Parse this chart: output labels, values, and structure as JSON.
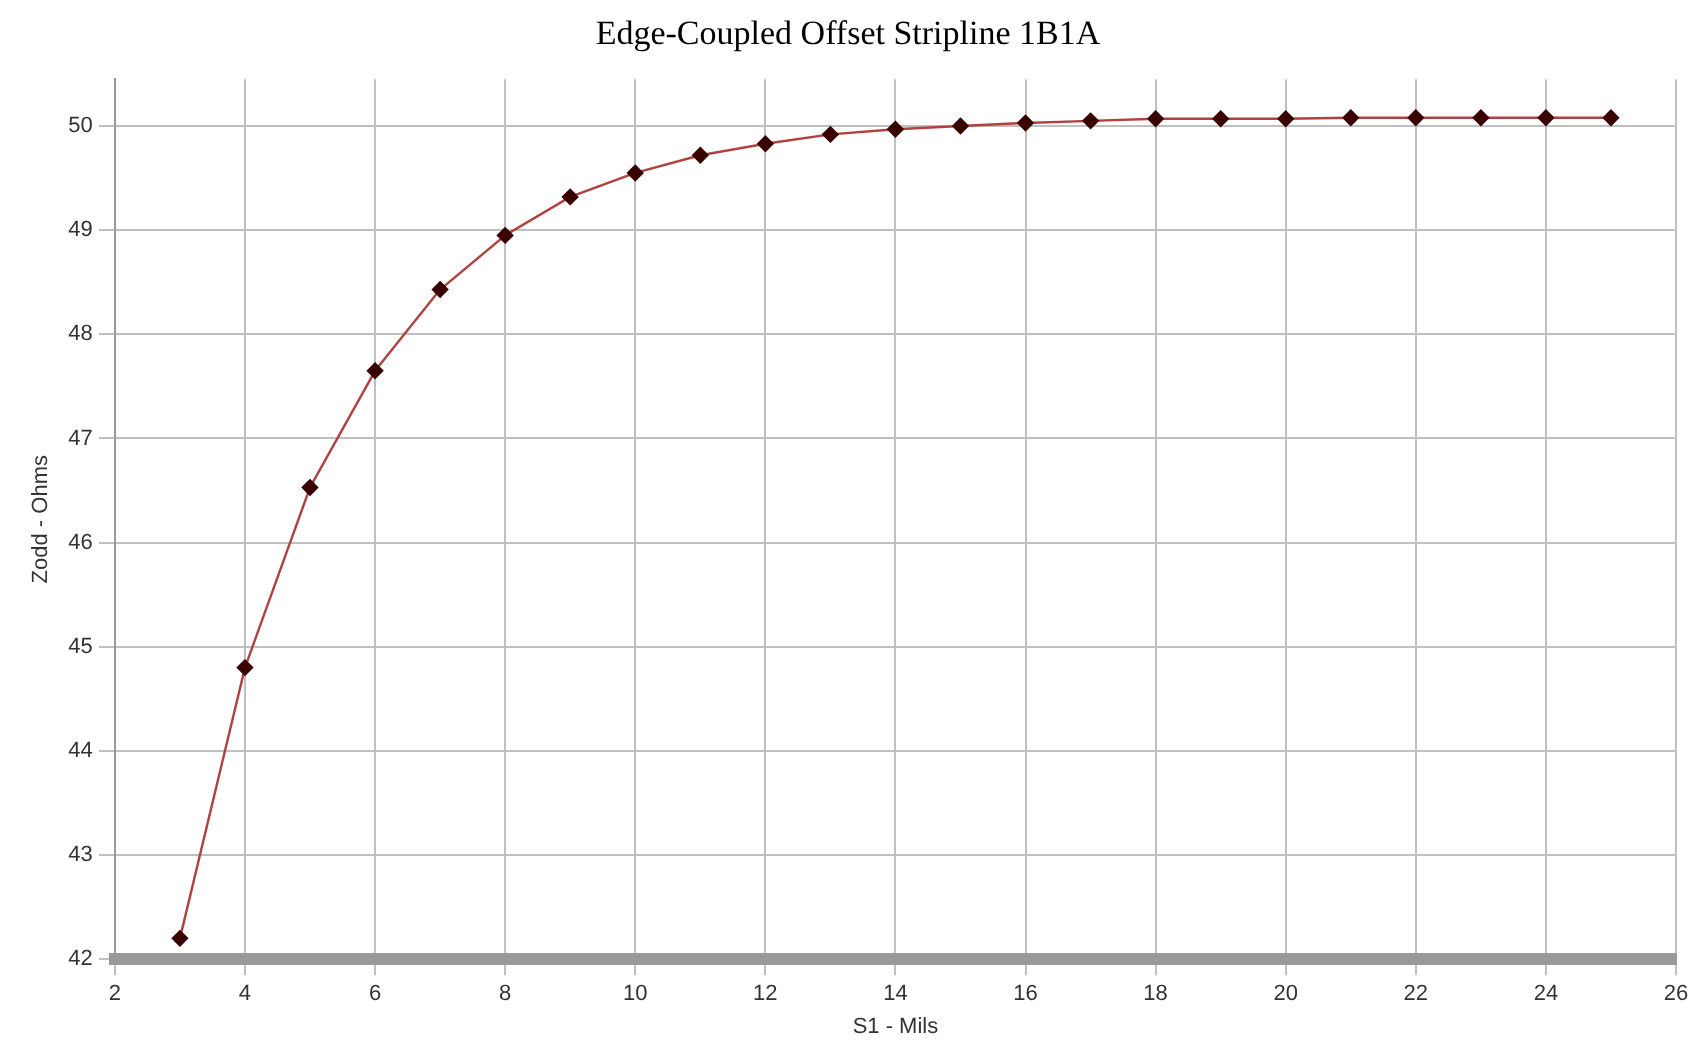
{
  "chart_data": {
    "type": "line",
    "title": "Edge-Coupled Offset Stripline 1B1A",
    "xlabel": "S1 - Mils",
    "ylabel": "Zodd - Ohms",
    "x": [
      3,
      4,
      5,
      6,
      7,
      8,
      9,
      10,
      11,
      12,
      13,
      14,
      15,
      16,
      17,
      18,
      19,
      20,
      21,
      22,
      23,
      24,
      25
    ],
    "series": [
      {
        "color": "#b0413e",
        "values": [
          42.2,
          44.8,
          46.53,
          47.65,
          48.43,
          48.95,
          49.32,
          49.55,
          49.72,
          49.83,
          49.92,
          49.97,
          50.0,
          50.03,
          50.05,
          50.07,
          50.07,
          50.07,
          50.08,
          50.08,
          50.08,
          50.08,
          50.08
        ]
      }
    ],
    "xlim": [
      2,
      26
    ],
    "xticks": [
      2,
      4,
      6,
      8,
      10,
      12,
      14,
      16,
      18,
      20,
      22,
      24,
      26
    ],
    "ylim": [
      42,
      50.45
    ],
    "yticks": [
      42,
      43,
      44,
      45,
      46,
      47,
      48,
      49,
      50
    ],
    "grid": true,
    "legend": false,
    "marker": "diamond",
    "line_style": "solid"
  }
}
